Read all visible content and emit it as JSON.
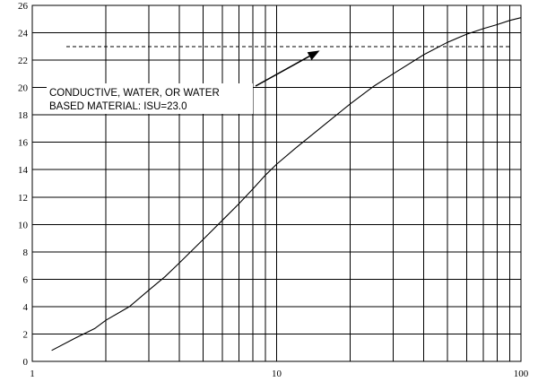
{
  "chart_data": {
    "type": "line",
    "xscale": "log",
    "xlim": [
      1,
      100
    ],
    "ylim": [
      0,
      26
    ],
    "x_ticks": [
      "1",
      "10",
      "100"
    ],
    "y_ticks": [
      "0",
      "2",
      "4",
      "6",
      "8",
      "10",
      "12",
      "14",
      "16",
      "18",
      "20",
      "22",
      "24",
      "26"
    ],
    "grid": true,
    "series": [
      {
        "x": [
          1.2,
          1.5,
          1.8,
          2,
          2.5,
          3,
          3.5,
          4,
          5,
          6,
          7,
          8,
          9,
          10,
          12,
          15,
          20,
          25,
          30,
          40,
          50,
          60,
          70,
          80,
          90,
          100
        ],
        "y": [
          0.8,
          1.7,
          2.4,
          3.0,
          4.0,
          5.2,
          6.2,
          7.2,
          8.9,
          10.3,
          11.5,
          12.6,
          13.6,
          14.4,
          15.6,
          17.0,
          18.8,
          20.1,
          21.0,
          22.4,
          23.3,
          23.9,
          24.3,
          24.6,
          24.9,
          25.1
        ]
      }
    ],
    "reference_line": {
      "y": 23.0,
      "style": "dashed"
    },
    "annotation": {
      "lines": [
        "CONDUCTIVE, WATER, OR WATER",
        "BASED MATERIAL: ISU=23.0"
      ],
      "arrow_to": {
        "x": 15,
        "y": 22.7
      }
    }
  }
}
